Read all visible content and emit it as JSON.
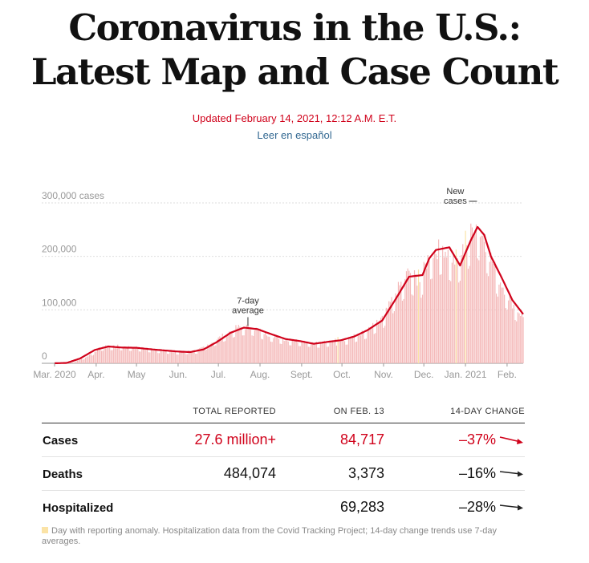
{
  "header": {
    "title_line1": "Coronavirus in the U.S.:",
    "title_line2": "Latest Map and Case Count",
    "updated": "Updated February 14, 2021, 12:12 A.M. E.T.",
    "spanish_link": "Leer en español"
  },
  "chart_data": {
    "type": "bar",
    "title": "",
    "ylabel": "",
    "xlabel": "",
    "ylim": [
      0,
      300000
    ],
    "y_ticks": [
      {
        "value": 0,
        "label": "0"
      },
      {
        "value": 100000,
        "label": "100,000"
      },
      {
        "value": 200000,
        "label": "200,000"
      },
      {
        "value": 300000,
        "label": "300,000 cases"
      }
    ],
    "x_ticks": [
      {
        "date": "2020-03-01",
        "label": "Mar. 2020"
      },
      {
        "date": "2020-04-01",
        "label": "Apr."
      },
      {
        "date": "2020-05-01",
        "label": "May"
      },
      {
        "date": "2020-06-01",
        "label": "Jun."
      },
      {
        "date": "2020-07-01",
        "label": "Jul."
      },
      {
        "date": "2020-08-01",
        "label": "Aug."
      },
      {
        "date": "2020-09-01",
        "label": "Sept."
      },
      {
        "date": "2020-10-01",
        "label": "Oct."
      },
      {
        "date": "2020-11-01",
        "label": "Nov."
      },
      {
        "date": "2020-12-01",
        "label": "Dec."
      },
      {
        "date": "2021-01-01",
        "label": "Jan. 2021"
      },
      {
        "date": "2021-02-01",
        "label": "Feb."
      }
    ],
    "x_range": [
      "2020-03-01",
      "2021-02-13"
    ],
    "series": [
      {
        "name": "New cases",
        "color": "#f4b8b8",
        "points": [
          [
            "2020-03-01",
            0
          ],
          [
            "2020-03-15",
            2000
          ],
          [
            "2020-03-25",
            12000
          ],
          [
            "2020-04-05",
            30000
          ],
          [
            "2020-04-15",
            32000
          ],
          [
            "2020-05-01",
            29000
          ],
          [
            "2020-05-15",
            25000
          ],
          [
            "2020-06-01",
            21000
          ],
          [
            "2020-06-15",
            23000
          ],
          [
            "2020-06-25",
            37000
          ],
          [
            "2020-07-05",
            52000
          ],
          [
            "2020-07-15",
            66000
          ],
          [
            "2020-07-25",
            68000
          ],
          [
            "2020-08-05",
            55000
          ],
          [
            "2020-08-20",
            44000
          ],
          [
            "2020-09-05",
            40000
          ],
          [
            "2020-09-15",
            37000
          ],
          [
            "2020-09-25",
            42000
          ],
          [
            "2020-10-05",
            45000
          ],
          [
            "2020-10-20",
            60000
          ],
          [
            "2020-11-01",
            85000
          ],
          [
            "2020-11-10",
            130000
          ],
          [
            "2020-11-20",
            170000
          ],
          [
            "2020-11-28",
            150000
          ],
          [
            "2020-12-05",
            200000
          ],
          [
            "2020-12-15",
            215000
          ],
          [
            "2020-12-25",
            185000
          ],
          [
            "2021-01-02",
            220000
          ],
          [
            "2021-01-08",
            260000
          ],
          [
            "2021-01-15",
            230000
          ],
          [
            "2021-01-25",
            160000
          ],
          [
            "2021-02-05",
            110000
          ],
          [
            "2021-02-13",
            85000
          ]
        ]
      },
      {
        "name": "7-day average",
        "color": "#d0021b",
        "points": [
          [
            "2020-03-01",
            0
          ],
          [
            "2020-03-10",
            700
          ],
          [
            "2020-03-20",
            9000
          ],
          [
            "2020-03-31",
            25000
          ],
          [
            "2020-04-10",
            31500
          ],
          [
            "2020-04-20",
            29500
          ],
          [
            "2020-05-01",
            29000
          ],
          [
            "2020-05-15",
            25500
          ],
          [
            "2020-06-01",
            22000
          ],
          [
            "2020-06-10",
            21000
          ],
          [
            "2020-06-20",
            26000
          ],
          [
            "2020-06-30",
            40000
          ],
          [
            "2020-07-10",
            57000
          ],
          [
            "2020-07-20",
            66800
          ],
          [
            "2020-07-30",
            64000
          ],
          [
            "2020-08-10",
            54000
          ],
          [
            "2020-08-20",
            45500
          ],
          [
            "2020-08-31",
            41500
          ],
          [
            "2020-09-10",
            36500
          ],
          [
            "2020-09-20",
            40000
          ],
          [
            "2020-09-30",
            43000
          ],
          [
            "2020-10-10",
            50000
          ],
          [
            "2020-10-20",
            62000
          ],
          [
            "2020-10-31",
            80000
          ],
          [
            "2020-11-10",
            120000
          ],
          [
            "2020-11-20",
            162000
          ],
          [
            "2020-11-30",
            165000
          ],
          [
            "2020-12-05",
            196000
          ],
          [
            "2020-12-10",
            212000
          ],
          [
            "2020-12-20",
            217000
          ],
          [
            "2020-12-28",
            183000
          ],
          [
            "2021-01-05",
            230000
          ],
          [
            "2021-01-10",
            255000
          ],
          [
            "2021-01-15",
            240000
          ],
          [
            "2021-01-20",
            200000
          ],
          [
            "2021-01-28",
            160000
          ],
          [
            "2021-02-05",
            118000
          ],
          [
            "2021-02-13",
            92000
          ]
        ]
      }
    ],
    "anomaly_dates": [
      "2020-09-28",
      "2020-11-27",
      "2020-12-25",
      "2021-01-01"
    ],
    "annotations": [
      {
        "text_lines": [
          "7-day",
          "average"
        ],
        "date": "2020-07-23",
        "value": 66800
      },
      {
        "text_lines": [
          "New",
          "cases"
        ],
        "date": "2021-01-03",
        "value": 300000
      }
    ]
  },
  "stats": {
    "headers": {
      "total": "TOTAL REPORTED",
      "day": "ON FEB. 13",
      "change": "14-DAY CHANGE"
    },
    "rows": [
      {
        "label": "Cases",
        "total": "27.6 million+",
        "day": "84,717",
        "change": "–37%",
        "trend": "down-steep",
        "highlight": true
      },
      {
        "label": "Deaths",
        "total": "484,074",
        "day": "3,373",
        "change": "–16%",
        "trend": "down",
        "highlight": false
      },
      {
        "label": "Hospitalized",
        "total": "",
        "day": "69,283",
        "change": "–28%",
        "trend": "down",
        "highlight": false
      }
    ]
  },
  "footnote": "Day with reporting anomaly. Hospitalization data from the Covid Tracking Project; 14-day change trends use 7-day averages."
}
